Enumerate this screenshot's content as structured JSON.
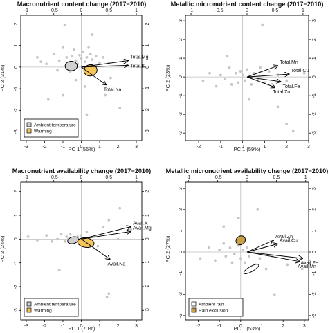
{
  "chart_data": [
    {
      "type": "scatter",
      "title": "Macronutrient content change (2017−2010)",
      "xlabel": "PC 1 (56%)",
      "ylabel": "PC 2 (31%)",
      "xlim": [
        -3.3,
        3.3
      ],
      "ylim": [
        -3.4,
        2.4
      ],
      "top_lim": [
        -1.1,
        1.1
      ],
      "right_lim": [
        -3.4,
        2.4
      ],
      "xticks": [
        -3,
        -2,
        -1,
        0,
        1,
        2,
        3
      ],
      "yticks": [
        -3,
        -2,
        -1,
        0,
        1,
        2
      ],
      "top_ticks": [
        -1.0,
        -0.5,
        0.0,
        0.5,
        1.0
      ],
      "right_ticks": [
        -3,
        -2,
        -1,
        0,
        1,
        2
      ],
      "points": [
        [
          -2.4,
          0.45
        ],
        [
          -2.2,
          0.25
        ],
        [
          -1.9,
          0.15
        ],
        [
          -1.5,
          0.6
        ],
        [
          -1.3,
          -0.15
        ],
        [
          -1.2,
          0.3
        ],
        [
          -1.0,
          0.9
        ],
        [
          -0.8,
          0.45
        ],
        [
          -0.7,
          0.2
        ],
        [
          -0.6,
          -0.2
        ],
        [
          -0.5,
          0.5
        ],
        [
          -0.4,
          0.8
        ],
        [
          -0.3,
          0.3
        ],
        [
          -0.2,
          0.15
        ],
        [
          -0.1,
          0.55
        ],
        [
          0.0,
          0.4
        ],
        [
          0.1,
          0.7
        ],
        [
          0.2,
          0.25
        ],
        [
          0.3,
          0.45
        ],
        [
          0.4,
          0.9
        ],
        [
          0.5,
          0.6
        ],
        [
          0.6,
          0.35
        ],
        [
          0.8,
          0.5
        ],
        [
          1.0,
          0.2
        ],
        [
          1.2,
          0.45
        ],
        [
          1.5,
          0.2
        ],
        [
          -0.9,
          1.95
        ],
        [
          0.6,
          1.5
        ],
        [
          -1.8,
          -1.5
        ],
        [
          -1.0,
          -1.3
        ],
        [
          -0.3,
          -0.6
        ],
        [
          0.2,
          -0.9
        ],
        [
          0.3,
          -2.2
        ],
        [
          1.3,
          -1.3
        ],
        [
          2.1,
          -1.9
        ],
        [
          1.6,
          -0.5
        ]
      ],
      "ellipses": [
        {
          "group": "Ambient temperature",
          "cx": -0.55,
          "cy": 0.05,
          "rx": 0.33,
          "ry": 0.22,
          "angle": 0,
          "fill": "#d0d0d0"
        },
        {
          "group": "Warming",
          "cx": 0.5,
          "cy": -0.15,
          "rx": 0.36,
          "ry": 0.26,
          "angle": 10,
          "fill": "#f6c55a"
        }
      ],
      "vectors": [
        {
          "label": "Total.Mg",
          "x": 0.85,
          "y": 0.3
        },
        {
          "label": "Total.K",
          "x": 0.85,
          "y": 0.08
        },
        {
          "label": "Total.Na",
          "x": 0.45,
          "y": -0.82
        }
      ],
      "legend": {
        "position": "bottom-left",
        "entries": [
          {
            "label": "Ambient temperature",
            "fill": "#d0d0d0"
          },
          {
            "label": "Warming",
            "fill": "#f6c55a"
          }
        ]
      }
    },
    {
      "type": "scatter",
      "title": "Metallic micronutrient content change (2017−2010)",
      "xlabel": "PC 1 (59%)",
      "ylabel": "PC 2 (23%)",
      "xlim": [
        -2.6,
        3.0
      ],
      "ylim": [
        -3.4,
        3.3
      ],
      "top_lim": [
        -1.1,
        1.1
      ],
      "right_lim": [
        -3.4,
        3.3
      ],
      "xticks": [
        -2,
        -1,
        0,
        1,
        2,
        3
      ],
      "yticks": [
        -3,
        -2,
        -1,
        0,
        1,
        2,
        3
      ],
      "top_ticks": [
        -1.0,
        -0.5,
        0.0,
        0.5,
        1.0
      ],
      "right_ticks": [
        -3,
        -2,
        -1,
        0,
        1,
        2,
        3
      ],
      "points": [
        [
          -1.8,
          -0.2
        ],
        [
          -1.5,
          0.2
        ],
        [
          -1.2,
          -0.5
        ],
        [
          -1.0,
          0.1
        ],
        [
          -0.8,
          -0.1
        ],
        [
          -0.6,
          0.5
        ],
        [
          -0.5,
          -0.4
        ],
        [
          -0.3,
          0.2
        ],
        [
          -0.2,
          -0.3
        ],
        [
          -0.1,
          0.3
        ],
        [
          0.0,
          0.1
        ],
        [
          0.1,
          -0.2
        ],
        [
          0.2,
          0.4
        ],
        [
          0.3,
          0.0
        ],
        [
          0.4,
          -0.4
        ],
        [
          0.5,
          0.2
        ],
        [
          0.7,
          -0.1
        ],
        [
          0.8,
          0.5
        ],
        [
          1.0,
          -0.3
        ],
        [
          1.2,
          0.3
        ],
        [
          1.4,
          -0.6
        ],
        [
          1.6,
          0.1
        ],
        [
          2.0,
          -0.2
        ],
        [
          2.8,
          0.2
        ],
        [
          0.9,
          2.8
        ],
        [
          2.0,
          -2.5
        ],
        [
          2.3,
          -2.9
        ],
        [
          -0.7,
          1.1
        ],
        [
          0.3,
          -1.2
        ],
        [
          1.6,
          -1.6
        ]
      ],
      "ellipses": [],
      "vectors": [
        {
          "label": "Total.Mn",
          "x": 0.55,
          "y": 0.6
        },
        {
          "label": "Total.Cu",
          "x": 0.75,
          "y": 0.15
        },
        {
          "label": "Total.Fe",
          "x": 0.6,
          "y": -0.25
        },
        {
          "label": "Total.Zn",
          "x": 0.5,
          "y": -0.55
        }
      ]
    },
    {
      "type": "scatter",
      "title": "Macronutrient availability change (2017−2010)",
      "xlabel": "PC 1 (70%)",
      "ylabel": "PC 2 (24%)",
      "xlim": [
        -3.3,
        3.3
      ],
      "ylim": [
        -3.4,
        2.4
      ],
      "top_lim": [
        -1.1,
        1.1
      ],
      "right_lim": [
        -3.4,
        2.4
      ],
      "xticks": [
        -3,
        -2,
        -1,
        0,
        1,
        2,
        3
      ],
      "yticks": [
        -3,
        -2,
        -1,
        0,
        1,
        2
      ],
      "top_ticks": [
        -1.0,
        -0.5,
        0.0,
        0.5,
        1.0
      ],
      "right_ticks": [
        -3,
        -2,
        -1,
        0,
        1,
        2
      ],
      "points": [
        [
          -2.9,
          0.1
        ],
        [
          -2.4,
          -0.05
        ],
        [
          -1.9,
          0.15
        ],
        [
          -1.6,
          -0.1
        ],
        [
          -1.3,
          0.0
        ],
        [
          -1.1,
          0.2
        ],
        [
          -0.9,
          -0.1
        ],
        [
          -0.8,
          0.1
        ],
        [
          -0.7,
          0.0
        ],
        [
          -0.6,
          0.2
        ],
        [
          -0.5,
          -0.15
        ],
        [
          -0.4,
          0.05
        ],
        [
          -0.3,
          -0.05
        ],
        [
          -0.2,
          0.1
        ],
        [
          -0.1,
          -0.2
        ],
        [
          0.0,
          0.15
        ],
        [
          0.1,
          -0.1
        ],
        [
          0.2,
          0.0
        ],
        [
          0.3,
          0.3
        ],
        [
          0.5,
          -0.2
        ],
        [
          0.7,
          0.1
        ],
        [
          0.9,
          -0.3
        ],
        [
          1.2,
          0.5
        ],
        [
          1.5,
          0.8
        ],
        [
          2.1,
          1.3
        ],
        [
          2.0,
          0.0
        ],
        [
          2.7,
          0.4
        ],
        [
          -1.2,
          -1.3
        ],
        [
          1.5,
          -2.3
        ],
        [
          1.4,
          -2.45
        ]
      ],
      "ellipses": [
        {
          "group": "Ambient temperature",
          "cx": -0.45,
          "cy": -0.05,
          "rx": 0.3,
          "ry": 0.14,
          "angle": 15,
          "fill": "#d0d0d0"
        },
        {
          "group": "Warming",
          "cx": 0.25,
          "cy": -0.15,
          "rx": 0.45,
          "ry": 0.2,
          "angle": -8,
          "fill": "#f6c55a"
        }
      ],
      "vectors": [
        {
          "label": "Avail.K",
          "x": 0.9,
          "y": 0.52
        },
        {
          "label": "Avail.Mg",
          "x": 0.9,
          "y": 0.32
        },
        {
          "label": "Avail.Na",
          "x": 0.52,
          "y": -0.85
        }
      ],
      "legend": {
        "position": "bottom-left",
        "entries": [
          {
            "label": "Ambient temperature",
            "fill": "#d0d0d0"
          },
          {
            "label": "Warming",
            "fill": "#f6c55a"
          }
        ]
      }
    },
    {
      "type": "scatter",
      "title": "Metallic micronutrient availability change (2017−2010)",
      "xlabel": "PC 1 (53%)",
      "ylabel": "PC 2 (27%)",
      "xlim": [
        -2.6,
        3.2
      ],
      "ylim": [
        -3.2,
        3.3
      ],
      "top_lim": [
        -1.05,
        1.05
      ],
      "right_lim": [
        -3.2,
        3.3
      ],
      "xticks": [
        -2,
        -1,
        0,
        1,
        2,
        3
      ],
      "yticks": [
        -3,
        -2,
        -1,
        0,
        1,
        2,
        3
      ],
      "top_ticks": [
        -1.0,
        -0.5,
        0.0,
        0.5,
        1.0
      ],
      "right_ticks": [
        -3,
        -2,
        -1,
        0,
        1,
        2,
        3
      ],
      "points": [
        [
          -1.9,
          -0.3
        ],
        [
          -1.5,
          0.2
        ],
        [
          -1.2,
          -0.4
        ],
        [
          -1.0,
          0.1
        ],
        [
          -0.8,
          0.4
        ],
        [
          -0.7,
          -0.2
        ],
        [
          -0.5,
          0.2
        ],
        [
          -0.4,
          -0.5
        ],
        [
          -0.3,
          -0.1
        ],
        [
          -0.1,
          0.3
        ],
        [
          0.0,
          -0.3
        ],
        [
          0.1,
          0.1
        ],
        [
          0.2,
          -0.5
        ],
        [
          0.3,
          0.2
        ],
        [
          0.4,
          -0.2
        ],
        [
          0.6,
          0.0
        ],
        [
          0.7,
          -0.6
        ],
        [
          0.9,
          -0.3
        ],
        [
          1.2,
          -0.8
        ],
        [
          1.5,
          -0.2
        ],
        [
          2.2,
          -0.6
        ],
        [
          2.9,
          -0.8
        ],
        [
          3.0,
          -0.5
        ],
        [
          -0.8,
          1.2
        ],
        [
          -0.1,
          1.6
        ],
        [
          0.3,
          -0.9
        ],
        [
          0.8,
          2.0
        ],
        [
          1.6,
          -2.0
        ]
      ],
      "ellipses": [
        {
          "group": "Ambient rain",
          "cx": 0.5,
          "cy": -0.8,
          "rx": 0.4,
          "ry": 0.12,
          "angle": 30,
          "fill": "#ffffff"
        },
        {
          "group": "Rain exclusion",
          "cx": 0.0,
          "cy": 0.55,
          "rx": 0.23,
          "ry": 0.2,
          "angle": 35,
          "fill": "#c8a04a"
        }
      ],
      "vectors": [
        {
          "label": "Avail.Zn",
          "x": 0.45,
          "y": 0.55
        },
        {
          "label": "Avail.Cu",
          "x": 0.52,
          "y": 0.38
        },
        {
          "label": "Avail.Fe",
          "x": 0.95,
          "y": -0.3
        },
        {
          "label": "Avail.Mn",
          "x": 0.9,
          "y": -0.45
        }
      ],
      "legend": {
        "position": "bottom-left",
        "entries": [
          {
            "label": "Ambient rain",
            "fill": "#ffffff"
          },
          {
            "label": "Rain exclusion",
            "fill": "#c8a04a"
          }
        ]
      }
    }
  ]
}
